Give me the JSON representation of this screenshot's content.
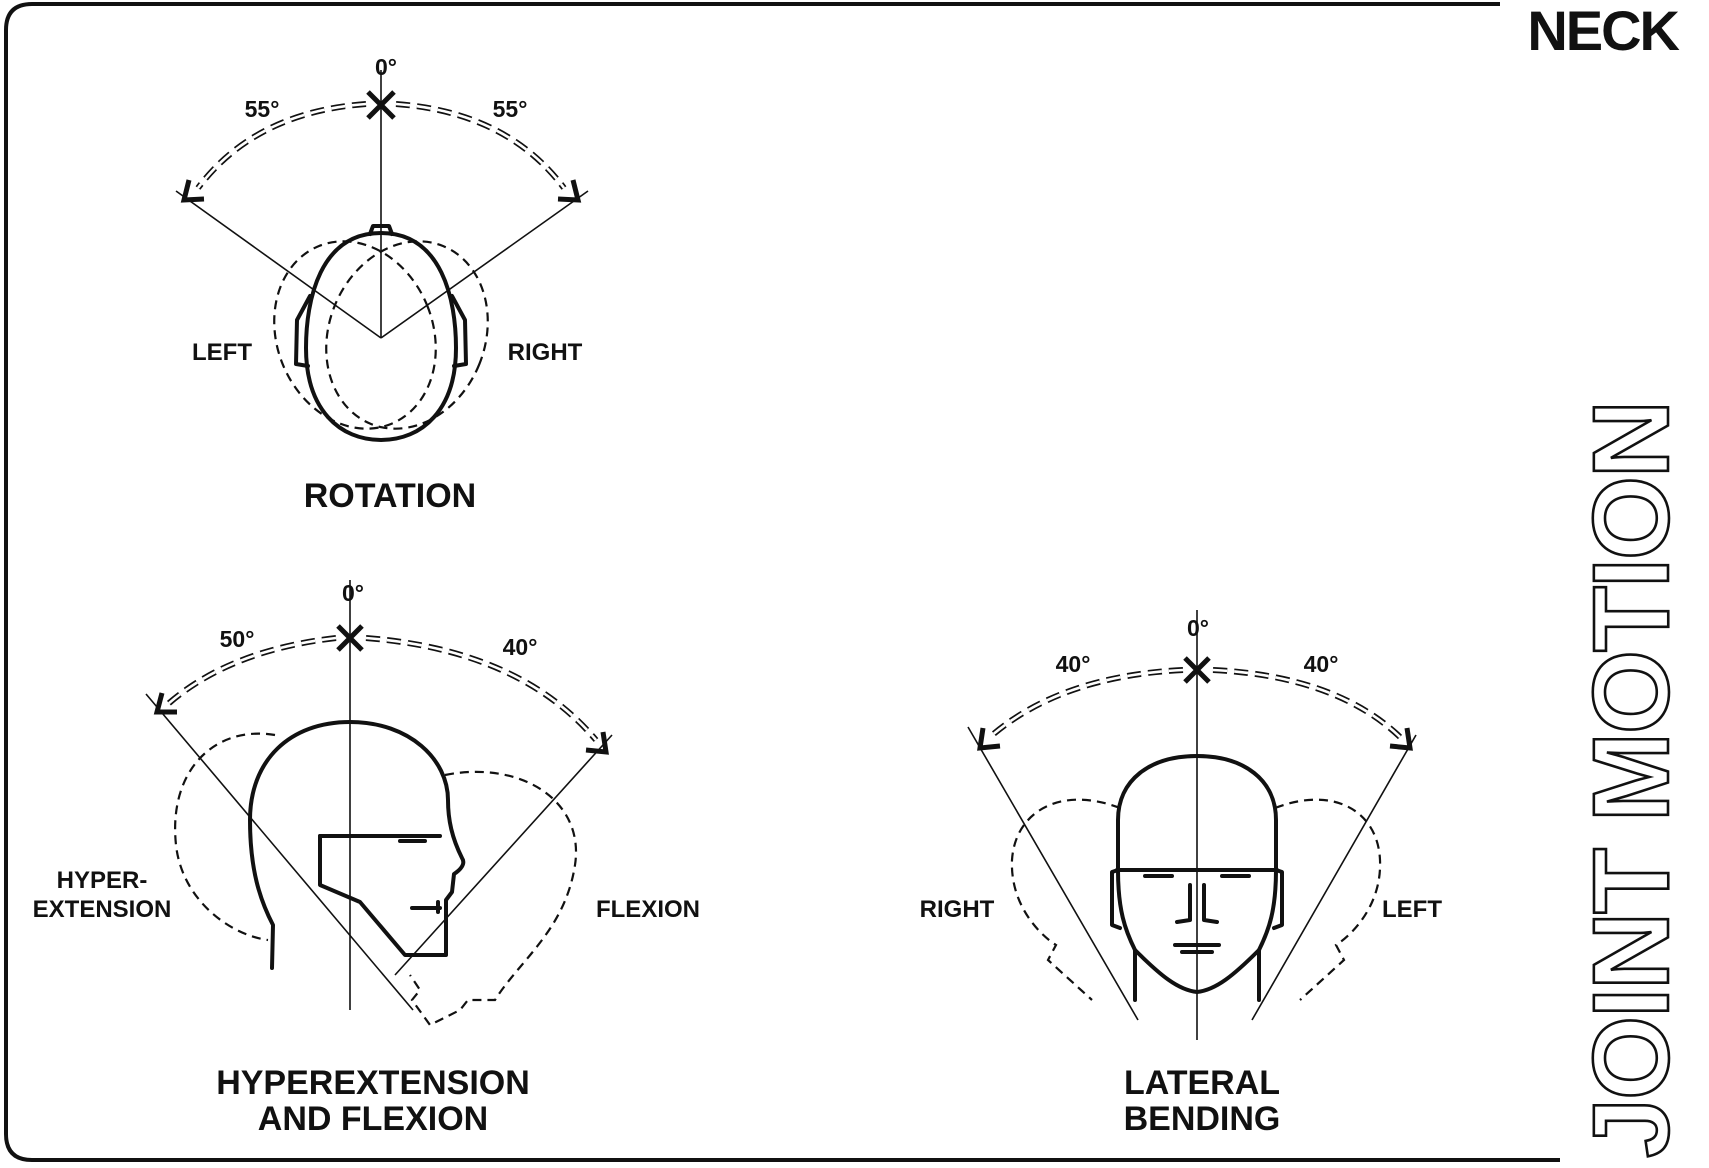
{
  "header": {
    "title": "NECK",
    "side_title": "JOINT MOTION"
  },
  "rotation": {
    "angles": {
      "center": "0°",
      "left": "55°",
      "right": "55°"
    },
    "side_labels": {
      "left": "LEFT",
      "right": "RIGHT"
    },
    "caption": "ROTATION"
  },
  "flexion": {
    "angles": {
      "center": "0°",
      "left": "50°",
      "right": "40°"
    },
    "side_labels": {
      "left_line1": "HYPER-",
      "left_line2": "EXTENSION",
      "right": "FLEXION"
    },
    "caption_line1": "HYPEREXTENSION",
    "caption_line2": "AND FLEXION"
  },
  "lateral": {
    "angles": {
      "center": "0°",
      "left": "40°",
      "right": "40°"
    },
    "side_labels": {
      "left": "RIGHT",
      "right": "LEFT"
    },
    "caption_line1": "LATERAL",
    "caption_line2": "BENDING"
  }
}
